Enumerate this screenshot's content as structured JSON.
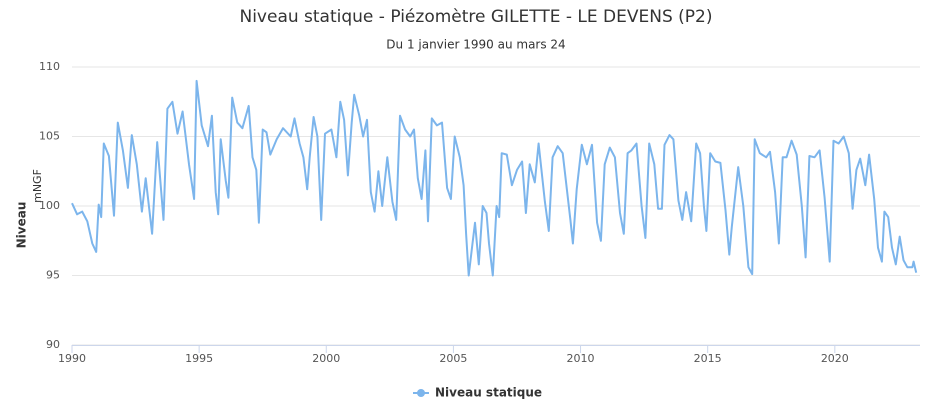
{
  "chart_data": {
    "type": "line",
    "title": "Niveau statique - Piézomètre GILETTE - LE DEVENS (P2)",
    "subtitle": "Du 1 janvier 1990 au mars 24",
    "y_label": "Niveau",
    "y_unit": "mNGF",
    "xlim": [
      1990,
      2023.35
    ],
    "xticks": [
      1990,
      1995,
      2000,
      2005,
      2010,
      2015,
      2020
    ],
    "ylim": [
      90,
      110
    ],
    "yticks": [
      90,
      95,
      100,
      105,
      110
    ],
    "grid": true,
    "legend": "bottom",
    "x": [
      1990.0,
      1990.2,
      1990.4,
      1990.6,
      1990.8,
      1990.95,
      1991.05,
      1991.15,
      1991.25,
      1991.45,
      1991.65,
      1991.8,
      1992.0,
      1992.2,
      1992.35,
      1992.55,
      1992.75,
      1992.9,
      1993.15,
      1993.35,
      1993.6,
      1993.75,
      1993.95,
      1994.15,
      1994.35,
      1994.6,
      1994.8,
      1994.9,
      1995.1,
      1995.35,
      1995.5,
      1995.65,
      1995.75,
      1995.85,
      1996.05,
      1996.15,
      1996.3,
      1996.5,
      1996.7,
      1996.95,
      1997.1,
      1997.25,
      1997.35,
      1997.5,
      1997.65,
      1997.8,
      1998.05,
      1998.3,
      1998.6,
      1998.75,
      1998.95,
      1999.1,
      1999.25,
      1999.35,
      1999.5,
      1999.65,
      1999.8,
      1999.95,
      2000.2,
      2000.4,
      2000.55,
      2000.7,
      2000.85,
      2001.0,
      2001.1,
      2001.3,
      2001.45,
      2001.6,
      2001.75,
      2001.9,
      2002.05,
      2002.2,
      2002.4,
      2002.6,
      2002.75,
      2002.9,
      2003.1,
      2003.3,
      2003.45,
      2003.6,
      2003.75,
      2003.9,
      2004.0,
      2004.15,
      2004.35,
      2004.55,
      2004.75,
      2004.9,
      2005.05,
      2005.25,
      2005.4,
      2005.5,
      2005.6,
      2005.75,
      2005.85,
      2006.0,
      2006.15,
      2006.3,
      2006.4,
      2006.55,
      2006.7,
      2006.8,
      2006.9,
      2007.1,
      2007.3,
      2007.5,
      2007.7,
      2007.85,
      2008.0,
      2008.2,
      2008.35,
      2008.6,
      2008.75,
      2008.9,
      2009.1,
      2009.3,
      2009.6,
      2009.7,
      2009.85,
      2010.05,
      2010.25,
      2010.45,
      2010.65,
      2010.8,
      2010.95,
      2011.15,
      2011.35,
      2011.55,
      2011.7,
      2011.85,
      2012.0,
      2012.2,
      2012.4,
      2012.55,
      2012.7,
      2012.9,
      2013.05,
      2013.2,
      2013.3,
      2013.5,
      2013.65,
      2013.85,
      2014.0,
      2014.15,
      2014.35,
      2014.55,
      2014.7,
      2014.85,
      2014.95,
      2015.1,
      2015.3,
      2015.5,
      2015.7,
      2015.85,
      2015.95,
      2016.2,
      2016.4,
      2016.6,
      2016.75,
      2016.85,
      2017.05,
      2017.3,
      2017.45,
      2017.65,
      2017.8,
      2017.95,
      2018.1,
      2018.3,
      2018.5,
      2018.7,
      2018.85,
      2019.0,
      2019.2,
      2019.4,
      2019.6,
      2019.8,
      2019.95,
      2020.15,
      2020.35,
      2020.55,
      2020.7,
      2020.85,
      2021.0,
      2021.2,
      2021.35,
      2021.55,
      2021.7,
      2021.85,
      2021.95,
      2022.1,
      2022.25,
      2022.4,
      2022.55,
      2022.7,
      2022.85,
      2023.05,
      2023.1,
      2023.2
    ],
    "series": [
      {
        "name": "Niveau statique",
        "color": "#7cb5ec",
        "values": [
          100.2,
          99.4,
          99.6,
          98.9,
          97.3,
          96.7,
          100.1,
          99.2,
          104.5,
          103.6,
          99.3,
          106.0,
          104.0,
          101.3,
          105.1,
          103.0,
          99.6,
          102.0,
          98.0,
          104.6,
          99.0,
          107.0,
          107.5,
          105.2,
          106.8,
          103.0,
          100.5,
          109.0,
          105.8,
          104.3,
          106.5,
          101.0,
          99.4,
          104.8,
          101.8,
          100.6,
          107.8,
          106.0,
          105.6,
          107.2,
          103.5,
          102.6,
          98.8,
          105.5,
          105.3,
          103.7,
          104.8,
          105.6,
          105.0,
          106.3,
          104.5,
          103.5,
          101.2,
          103.5,
          106.4,
          105.0,
          99.0,
          105.2,
          105.5,
          103.5,
          107.5,
          106.2,
          102.2,
          106.0,
          108.0,
          106.5,
          105.0,
          106.2,
          101.0,
          99.6,
          102.5,
          100.0,
          103.5,
          100.3,
          99.0,
          106.5,
          105.5,
          105.0,
          105.5,
          102.0,
          100.5,
          104.0,
          98.9,
          106.3,
          105.8,
          106.0,
          101.3,
          100.5,
          105.0,
          103.5,
          101.5,
          98.0,
          95.0,
          97.3,
          98.8,
          95.8,
          100.0,
          99.5,
          97.3,
          95.0,
          100.0,
          99.2,
          103.8,
          103.7,
          101.5,
          102.6,
          103.2,
          99.5,
          103.0,
          101.7,
          104.5,
          100.3,
          98.2,
          103.5,
          104.3,
          103.8,
          99.0,
          97.3,
          101.2,
          104.4,
          103.0,
          104.4,
          98.8,
          97.5,
          103.0,
          104.2,
          103.5,
          99.5,
          98.0,
          103.8,
          104.0,
          104.5,
          100.0,
          97.7,
          104.5,
          103.0,
          99.8,
          99.8,
          104.4,
          105.1,
          104.8,
          100.4,
          99.0,
          101.0,
          98.9,
          104.5,
          103.8,
          100.0,
          98.2,
          103.8,
          103.2,
          103.1,
          99.7,
          96.5,
          98.5,
          102.8,
          100.0,
          95.6,
          95.1,
          104.8,
          103.8,
          103.5,
          103.9,
          101.0,
          97.3,
          103.5,
          103.5,
          104.7,
          103.7,
          100.0,
          96.3,
          103.6,
          103.5,
          104.0,
          100.6,
          96.0,
          104.7,
          104.5,
          105.0,
          103.8,
          99.8,
          102.6,
          103.4,
          101.5,
          103.7,
          100.5,
          97.0,
          96.0,
          99.6,
          99.2,
          97.0,
          95.8,
          97.8,
          96.1,
          95.6,
          95.6,
          96.0,
          95.2
        ]
      }
    ]
  }
}
